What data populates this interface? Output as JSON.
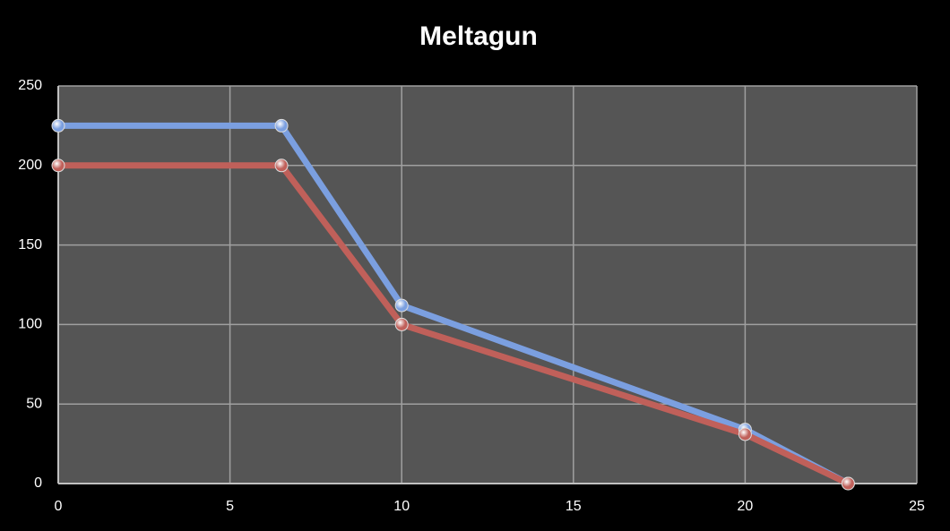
{
  "chart_data": {
    "type": "line",
    "title": "Meltagun",
    "x": [
      0,
      6.5,
      10,
      20,
      23
    ],
    "series": [
      {
        "color": "#7b9fe0",
        "values": [
          225,
          225,
          112,
          34,
          0
        ]
      },
      {
        "color": "#c0605a",
        "values": [
          200,
          200,
          100,
          31,
          0
        ]
      }
    ],
    "xlim": [
      0,
      25
    ],
    "xticks": [
      0,
      5,
      10,
      15,
      20,
      25
    ],
    "ylim": [
      0,
      250
    ],
    "yticks": [
      0,
      50,
      100,
      150,
      200,
      250
    ],
    "grid": true
  }
}
